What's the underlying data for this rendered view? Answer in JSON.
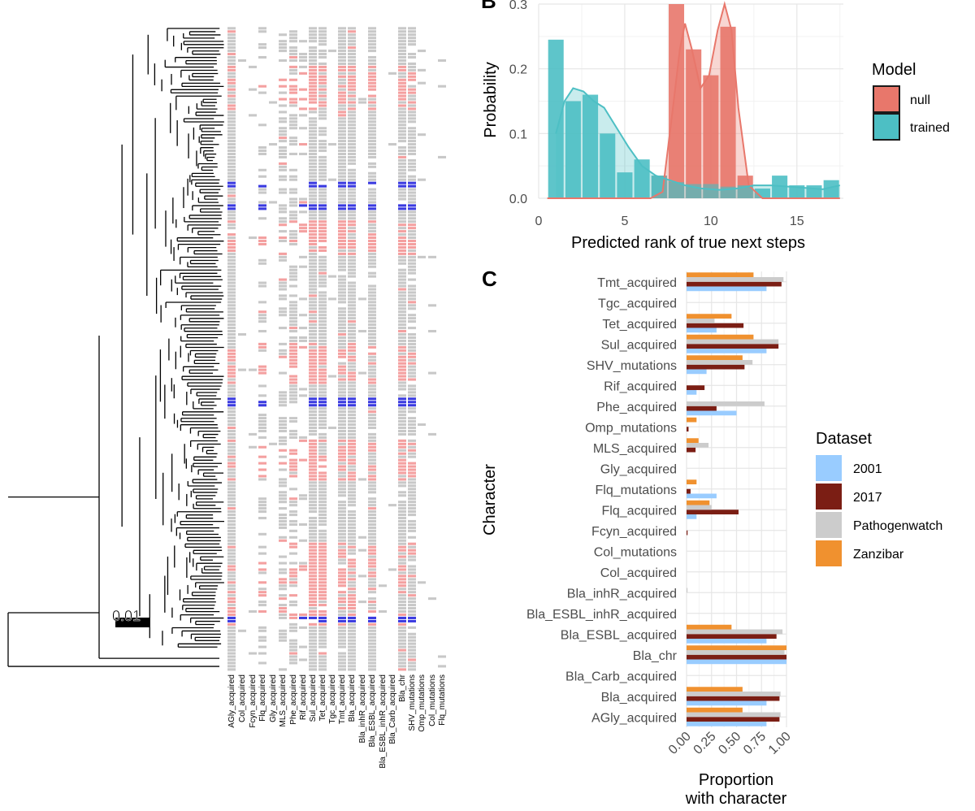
{
  "panelA": {
    "scale_label": "0.01",
    "columns": [
      "AGly_acquired",
      "Col_acquired",
      "Fcyn_acquired",
      "Flq_acquired",
      "Gly_acquired",
      "MLS_acquired",
      "Phe_acquired",
      "Rif_acquired",
      "Sul_acquired",
      "Tet_acquired",
      "Tgc_acquired",
      "Tmt_acquired",
      "Bla_acquired",
      "Bla_inhR_acquired",
      "Bla_ESBL_acquired",
      "Bla_ESBL_inhR_acquired",
      "Bla_Carb_acquired",
      "Bla_chr",
      "SHV_mutations",
      "Omp_mutations",
      "Col_mutations",
      "Flq_mutations"
    ],
    "colors": {
      "absent": "#c8c8c8",
      "present": "#f4a0a0",
      "blue": "#3a3ae0"
    }
  },
  "chart_data": [
    {
      "panel": "B",
      "type": "bar",
      "title": "",
      "xlabel": "Predicted rank of true next steps",
      "ylabel": "Probability",
      "xlim": [
        0,
        17.7
      ],
      "ylim": [
        0,
        0.3
      ],
      "xticks": [
        "0",
        "5",
        "10",
        "15"
      ],
      "yticks": [
        "0.0",
        "0.1",
        "0.2",
        "0.3"
      ],
      "legend_title": "Model",
      "series": [
        {
          "name": "null",
          "color": "#e8776b",
          "bins": [
            1,
            2,
            3,
            4,
            5,
            6,
            7,
            8,
            9,
            10,
            11,
            12,
            13,
            14,
            15,
            16,
            17
          ],
          "values": [
            0,
            0,
            0,
            0,
            0,
            0,
            0.035,
            0.3,
            0.23,
            0.19,
            0.265,
            0.035,
            0,
            0,
            0,
            0,
            0
          ]
        },
        {
          "name": "trained",
          "color": "#4dbfc4",
          "bins": [
            1,
            2,
            3,
            4,
            5,
            6,
            7,
            8,
            9,
            10,
            11,
            12,
            13,
            14,
            15,
            16,
            17
          ],
          "values": [
            0.245,
            0.15,
            0.16,
            0.1,
            0.04,
            0.06,
            0.035,
            0.025,
            0.022,
            0.022,
            0.018,
            0.02,
            0.015,
            0.035,
            0.02,
            0.02,
            0.028
          ]
        }
      ],
      "density": {
        "null": {
          "x": [
            0.5,
            6.5,
            7.2,
            7.8,
            8.2,
            8.5,
            8.9,
            9.4,
            9.9,
            10.4,
            10.8,
            11.2,
            11.6,
            12.2,
            13,
            17.5
          ],
          "y": [
            0,
            0,
            0.01,
            0.14,
            0.23,
            0.27,
            0.23,
            0.17,
            0.19,
            0.26,
            0.3,
            0.26,
            0.14,
            0.02,
            0,
            0
          ]
        },
        "trained": {
          "x": [
            1,
            1.5,
            2,
            2.6,
            3.2,
            3.8,
            4.5,
            5.2,
            6,
            6.8,
            7.6,
            8.5,
            9.5,
            10.5,
            11.5,
            12.5,
            13.5,
            14.5,
            15.5,
            16.5,
            17.5
          ],
          "y": [
            0.1,
            0.15,
            0.17,
            0.165,
            0.15,
            0.14,
            0.11,
            0.08,
            0.05,
            0.035,
            0.028,
            0.02,
            0.015,
            0.013,
            0.015,
            0.02,
            0.02,
            0.018,
            0.016,
            0.014,
            0.02
          ]
        }
      }
    },
    {
      "panel": "C",
      "type": "bar",
      "orientation": "horizontal",
      "xlabel": "Proportion\nwith character",
      "xlabel_lines": [
        "Proportion",
        "with character"
      ],
      "ylabel": "Character",
      "xlim": [
        0,
        1
      ],
      "xticks": [
        "0.00",
        "0.25",
        "0.50",
        "0.75",
        "1.00"
      ],
      "legend_title": "Dataset",
      "categories": [
        "Tmt_acquired",
        "Tgc_acquired",
        "Tet_acquired",
        "Sul_acquired",
        "SHV_mutations",
        "Rif_acquired",
        "Phe_acquired",
        "Omp_mutations",
        "MLS_acquired",
        "Gly_acquired",
        "Flq_mutations",
        "Flq_acquired",
        "Fcyn_acquired",
        "Col_mutations",
        "Col_acquired",
        "Bla_inhR_acquired",
        "Bla_ESBL_inhR_acquired",
        "Bla_ESBL_acquired",
        "Bla_chr",
        "Bla_Carb_acquired",
        "Bla_acquired",
        "AGly_acquired"
      ],
      "series": [
        {
          "name": "2001",
          "color": "#99ccff",
          "values": [
            0.8,
            0,
            0.3,
            0.8,
            0.2,
            0.1,
            0.5,
            0,
            0,
            0,
            0.3,
            0.1,
            0,
            0,
            0,
            0,
            0,
            0.8,
            1.0,
            0,
            0.8,
            0.8
          ]
        },
        {
          "name": "2017",
          "color": "#7b1e14",
          "values": [
            0.95,
            0,
            0.57,
            0.92,
            0.58,
            0.18,
            0.3,
            0.02,
            0.09,
            0,
            0.04,
            0.52,
            0.01,
            0,
            0,
            0,
            0,
            0.9,
            1.0,
            0,
            0.93,
            0.93
          ]
        },
        {
          "name": "Pathogenwatch",
          "color": "#cccccc",
          "values": [
            0.97,
            0,
            0.28,
            0.92,
            0.66,
            0,
            0.78,
            0,
            0.22,
            0,
            0,
            0.25,
            0,
            0,
            0,
            0.01,
            0,
            0.96,
            0.98,
            0,
            0.94,
            0.94
          ]
        },
        {
          "name": "Zanzibar",
          "color": "#f0912f",
          "values": [
            0.67,
            0,
            0.45,
            0.67,
            0.56,
            0,
            0,
            0.1,
            0.12,
            0,
            0.1,
            0.23,
            0,
            0,
            0,
            0,
            0,
            0.45,
            1.0,
            0,
            0.56,
            0.56
          ]
        }
      ]
    }
  ]
}
